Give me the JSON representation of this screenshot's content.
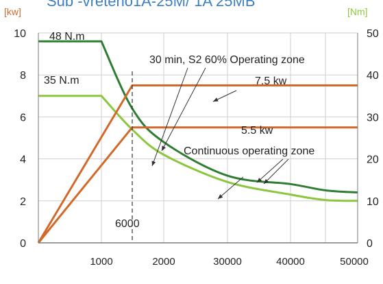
{
  "chart_data": {
    "type": "line",
    "title": "Sub -vreteno1A-25M/ 1A 25MB",
    "left_axis_unit": "[kw]",
    "right_axis_unit": "[Nm]",
    "left_ylim": [
      0,
      10
    ],
    "right_ylim": [
      0,
      50
    ],
    "left_ticks": [
      "10",
      "8",
      "6",
      "4",
      "2",
      "0"
    ],
    "right_ticks": [
      "50",
      "40",
      "30",
      "20",
      "10",
      "0"
    ],
    "x_tick_labels": [
      "1000",
      "2000",
      "30000",
      "40000",
      "50000"
    ],
    "grid": true,
    "colors": {
      "title": "#3f7fc0",
      "left_unit": "#cc6d2c",
      "right_unit": "#8cc63f",
      "power": "#d2692a",
      "torque_s2": "#2e7d32",
      "torque_cont": "#8cc63f",
      "grid": "#cfcfcf"
    },
    "series": [
      {
        "name": "",
        "axis": "right",
        "color_key": "torque_s2",
        "x": [
          0,
          1000,
          1500,
          2000,
          3000,
          4000,
          5000,
          6000
        ],
        "y": [
          48,
          48,
          32,
          24,
          16,
          14,
          12.5,
          12
        ]
      },
      {
        "name": "",
        "axis": "right",
        "color_key": "torque_cont",
        "x": [
          0,
          1000,
          1500,
          2000,
          3000,
          4000,
          5000,
          6000
        ],
        "y": [
          35,
          35,
          27,
          21,
          14.5,
          11.5,
          10.2,
          10
        ]
      },
      {
        "name": "",
        "axis": "left",
        "color_key": "power",
        "x": [
          0,
          1500,
          6000
        ],
        "y": [
          0,
          7.5,
          7.5
        ]
      },
      {
        "name": "",
        "axis": "left",
        "color_key": "power",
        "x": [
          0,
          1500,
          6000
        ],
        "y": [
          0,
          5.5,
          5.5
        ]
      }
    ],
    "annotations": {
      "torque_s2_label": "48 N.m",
      "torque_cont_label": "35 N.m",
      "zone_s2": "30 min, S2 60% Operating zone",
      "power_s2_label": "7.5 kw",
      "power_cont_label": "5.5 kw",
      "zone_cont": "Continuous operating zone",
      "corner_speed": "6000"
    }
  }
}
